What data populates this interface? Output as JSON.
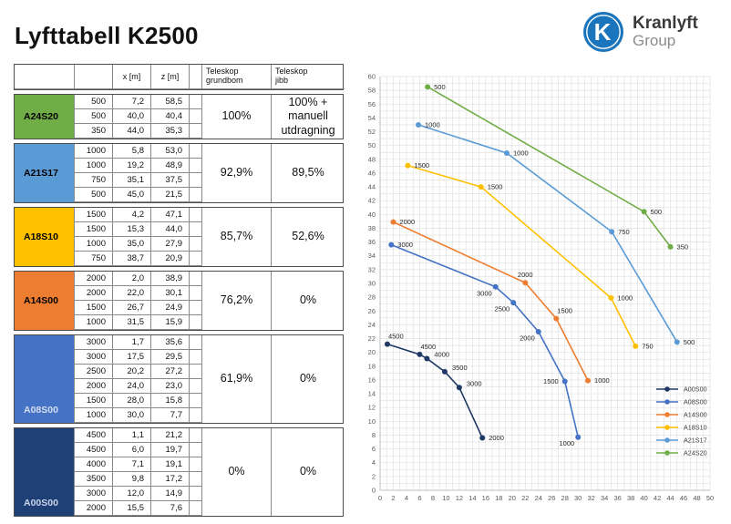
{
  "title": "Lyfttabell K2500",
  "logo": {
    "brand": "Kranlyft",
    "sub": "Group",
    "letter": "K",
    "circle_color": "#1b75bc"
  },
  "table": {
    "headers": {
      "model": "",
      "load": "",
      "x": "x [m]",
      "z": "z [m]",
      "spacer": "",
      "grundbom": "Teleskop\ngrundbom",
      "jibb": "Teleskop\njibb"
    },
    "groups": [
      {
        "model": "A24S20",
        "color": "#70AD47",
        "text_color": "#000000",
        "rows": [
          [
            "500",
            "7,2",
            "58,5"
          ],
          [
            "500",
            "40,0",
            "40,4"
          ],
          [
            "350",
            "44,0",
            "35,3"
          ]
        ],
        "grundbom": "100%",
        "jibb": "100% +\nmanuell\nutdragning"
      },
      {
        "model": "A21S17",
        "color": "#5B9BD5",
        "text_color": "#000000",
        "rows": [
          [
            "1000",
            "5,8",
            "53,0"
          ],
          [
            "1000",
            "19,2",
            "48,9"
          ],
          [
            "750",
            "35,1",
            "37,5"
          ],
          [
            "500",
            "45,0",
            "21,5"
          ]
        ],
        "grundbom": "92,9%",
        "jibb": "89,5%"
      },
      {
        "model": "A18S10",
        "color": "#FFC000",
        "text_color": "#000000",
        "rows": [
          [
            "1500",
            "4,2",
            "47,1"
          ],
          [
            "1500",
            "15,3",
            "44,0"
          ],
          [
            "1000",
            "35,0",
            "27,9"
          ],
          [
            "750",
            "38,7",
            "20,9"
          ]
        ],
        "grundbom": "85,7%",
        "jibb": "52,6%"
      },
      {
        "model": "A14S00",
        "color": "#ED7D31",
        "text_color": "#000000",
        "rows": [
          [
            "2000",
            "2,0",
            "38,9"
          ],
          [
            "2000",
            "22,0",
            "30,1"
          ],
          [
            "1500",
            "26,7",
            "24,9"
          ],
          [
            "1000",
            "31,5",
            "15,9"
          ]
        ],
        "grundbom": "76,2%",
        "jibb": "0%"
      },
      {
        "model": "A08S00",
        "color": "#4472C4",
        "text_color": "#D6DEF0",
        "rows": [
          [
            "3000",
            "1,7",
            "35,6"
          ],
          [
            "3000",
            "17,5",
            "29,5"
          ],
          [
            "2500",
            "20,2",
            "27,2"
          ],
          [
            "2000",
            "24,0",
            "23,0"
          ],
          [
            "1500",
            "28,0",
            "15,8"
          ],
          [
            "1000",
            "30,0",
            "7,7"
          ]
        ],
        "grundbom": "61,9%",
        "jibb": "0%"
      },
      {
        "model": "A00S00",
        "color": "#1F4077",
        "text_color": "#C9D4E8",
        "rows": [
          [
            "4500",
            "1,1",
            "21,2"
          ],
          [
            "4500",
            "6,0",
            "19,7"
          ],
          [
            "4000",
            "7,1",
            "19,1"
          ],
          [
            "3500",
            "9,8",
            "17,2"
          ],
          [
            "3000",
            "12,0",
            "14,9"
          ],
          [
            "2000",
            "15,5",
            "7,6"
          ]
        ],
        "grundbom": "0%",
        "jibb": "0%"
      }
    ]
  },
  "chart_data": {
    "type": "line",
    "title": "",
    "xlabel": "",
    "ylabel": "",
    "xlim": [
      0,
      50
    ],
    "ylim": [
      0,
      60
    ],
    "x_tick_step": 2,
    "y_tick_step": 2,
    "grid_step": 1,
    "grid": true,
    "legend_position": "right-inside",
    "series": [
      {
        "name": "A00S00",
        "color": "#1F3864",
        "points": [
          {
            "x": 1.1,
            "y": 21.2,
            "label": "4500",
            "label_pos": "above-right"
          },
          {
            "x": 6.0,
            "y": 19.7,
            "label": "4500",
            "label_pos": "above-right"
          },
          {
            "x": 7.1,
            "y": 19.1,
            "label": "4000",
            "label_pos": "right-above"
          },
          {
            "x": 9.8,
            "y": 17.2,
            "label": "3500",
            "label_pos": "right-above"
          },
          {
            "x": 12.0,
            "y": 14.9,
            "label": "3000",
            "label_pos": "right-above"
          },
          {
            "x": 15.5,
            "y": 7.6,
            "label": "2000",
            "label_pos": "right"
          }
        ]
      },
      {
        "name": "A08S00",
        "color": "#4472C4",
        "points": [
          {
            "x": 1.7,
            "y": 35.6,
            "label": "3000",
            "label_pos": "right"
          },
          {
            "x": 17.5,
            "y": 29.5,
            "label": "3000",
            "label_pos": "below-left"
          },
          {
            "x": 20.2,
            "y": 27.2,
            "label": "2500",
            "label_pos": "below-left"
          },
          {
            "x": 24.0,
            "y": 23.0,
            "label": "2000",
            "label_pos": "below-left"
          },
          {
            "x": 28.0,
            "y": 15.8,
            "label": "1500",
            "label_pos": "left"
          },
          {
            "x": 30.0,
            "y": 7.7,
            "label": "1000",
            "label_pos": "below-left"
          }
        ]
      },
      {
        "name": "A14S00",
        "color": "#ED7D31",
        "points": [
          {
            "x": 2.0,
            "y": 38.9,
            "label": "2000",
            "label_pos": "right"
          },
          {
            "x": 22.0,
            "y": 30.1,
            "label": "2000",
            "label_pos": "above"
          },
          {
            "x": 26.7,
            "y": 24.9,
            "label": "1500",
            "label_pos": "above-right"
          },
          {
            "x": 31.5,
            "y": 15.9,
            "label": "1000",
            "label_pos": "right"
          }
        ]
      },
      {
        "name": "A18S10",
        "color": "#FFC000",
        "points": [
          {
            "x": 4.2,
            "y": 47.1,
            "label": "1500",
            "label_pos": "right"
          },
          {
            "x": 15.3,
            "y": 44.0,
            "label": "1500",
            "label_pos": "right"
          },
          {
            "x": 35.0,
            "y": 27.9,
            "label": "1000",
            "label_pos": "right"
          },
          {
            "x": 38.7,
            "y": 20.9,
            "label": "750",
            "label_pos": "right"
          }
        ]
      },
      {
        "name": "A21S17",
        "color": "#5B9BD5",
        "points": [
          {
            "x": 5.8,
            "y": 53.0,
            "label": "1000",
            "label_pos": "right"
          },
          {
            "x": 19.2,
            "y": 48.9,
            "label": "1000",
            "label_pos": "right"
          },
          {
            "x": 35.1,
            "y": 37.5,
            "label": "750",
            "label_pos": "right"
          },
          {
            "x": 45.0,
            "y": 21.5,
            "label": "500",
            "label_pos": "right"
          }
        ]
      },
      {
        "name": "A24S20",
        "color": "#70AD47",
        "points": [
          {
            "x": 7.2,
            "y": 58.5,
            "label": "500",
            "label_pos": "right"
          },
          {
            "x": 40.0,
            "y": 40.4,
            "label": "500",
            "label_pos": "right"
          },
          {
            "x": 44.0,
            "y": 35.3,
            "label": "350",
            "label_pos": "right"
          }
        ]
      }
    ]
  }
}
